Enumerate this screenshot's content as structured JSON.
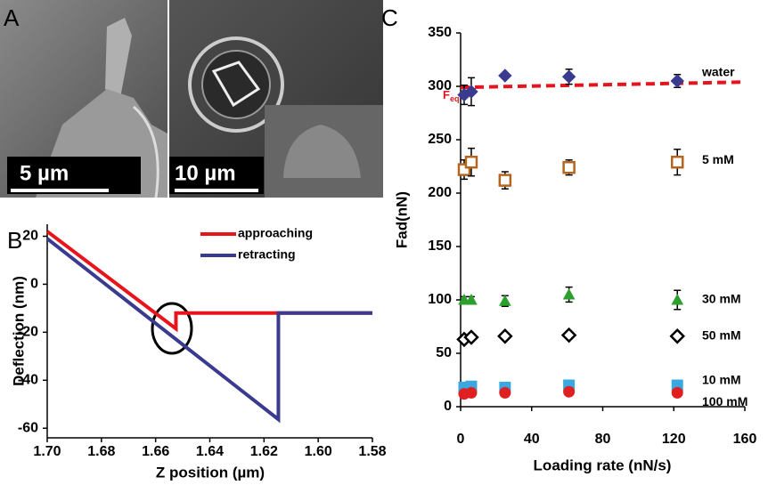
{
  "panel_a": {
    "label": "A",
    "scale_bars": [
      "5 µm",
      "10 µm"
    ]
  },
  "chart_data": [
    {
      "type": "line",
      "panel_label": "B",
      "xlabel": "Z position (µm)",
      "ylabel": "Deflection (nm)",
      "xlim": [
        1.7,
        1.58
      ],
      "ylim": [
        -64,
        25
      ],
      "xticks": [
        {
          "value": 1.7,
          "label": "1.70"
        },
        1.68,
        1.66,
        1.64,
        1.62,
        {
          "value": 1.6,
          "label": "1.60"
        },
        1.58
      ],
      "yticks": [
        20,
        0,
        -20,
        -40,
        -60
      ],
      "series": [
        {
          "name": "approaching",
          "color": "#e8141b",
          "x": [
            1.7,
            1.6525,
            1.6525,
            1.58
          ],
          "values": [
            22,
            -18.5,
            -12,
            -12
          ]
        },
        {
          "name": "retracting",
          "color": "#3a3b8f",
          "x": [
            1.7,
            1.6147,
            1.6147,
            1.58
          ],
          "values": [
            19,
            -56.3,
            -12,
            -12
          ]
        }
      ]
    },
    {
      "type": "scatter",
      "panel_label": "C",
      "xlabel": "Loading rate (nN/s)",
      "ylabel": "Fad(nN)",
      "xlim": [
        0,
        160
      ],
      "ylim": [
        0,
        350
      ],
      "xticks": [
        0,
        40,
        80,
        120,
        160
      ],
      "yticks": [
        0,
        50,
        100,
        150,
        200,
        250,
        300,
        350
      ],
      "x": [
        2,
        6,
        25,
        61,
        122
      ],
      "series": [
        {
          "name": "water",
          "color": "#3a3b8f",
          "marker": "diamond",
          "filled": true,
          "values": [
            292,
            295,
            310,
            309,
            305
          ],
          "errors": [
            9,
            13,
            0,
            7,
            6
          ]
        },
        {
          "name": "5 mM",
          "color": "#b5651d",
          "marker": "square",
          "filled": false,
          "values": [
            222,
            229,
            212,
            224,
            229
          ],
          "errors": [
            9,
            13,
            8,
            7,
            12
          ]
        },
        {
          "name": "30 mM",
          "color": "#2ca02c",
          "marker": "triangle",
          "filled": true,
          "values": [
            100,
            100,
            99,
            105,
            100
          ],
          "errors": [
            3,
            3,
            5,
            7,
            9
          ]
        },
        {
          "name": "50 mM",
          "color": "#000000",
          "marker": "diamond",
          "filled": false,
          "values": [
            63,
            65,
            66,
            67,
            66
          ]
        },
        {
          "name": "10 mM",
          "color": "#3aa8e0",
          "marker": "square",
          "filled": true,
          "values": [
            18,
            19,
            18,
            20,
            20
          ]
        },
        {
          "name": "100 mM",
          "color": "#e02020",
          "marker": "circle",
          "filled": true,
          "values": [
            12,
            13,
            13,
            14,
            13
          ]
        }
      ],
      "trend_line": {
        "x": [
          0,
          160
        ],
        "values": [
          299,
          304
        ],
        "color": "#e8141b"
      },
      "annotation": {
        "main": "F",
        "sub": "eq"
      }
    }
  ]
}
